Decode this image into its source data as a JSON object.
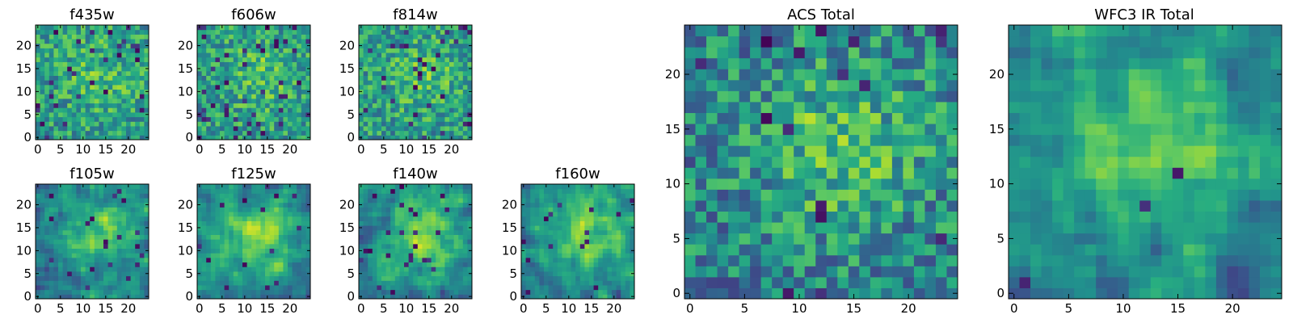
{
  "chart_data": [
    {
      "type": "heatmap",
      "title": "f435w",
      "xticks": [
        "0",
        "5",
        "10",
        "15",
        "20"
      ],
      "yticks": [
        "0",
        "5",
        "10",
        "15",
        "20"
      ],
      "size": 25,
      "seed": 11,
      "pattern": "noise",
      "blur": 0,
      "dark_prob": 0.05
    },
    {
      "type": "heatmap",
      "title": "f606w",
      "xticks": [
        "0",
        "5",
        "10",
        "15",
        "20"
      ],
      "yticks": [
        "0",
        "5",
        "10",
        "15",
        "20"
      ],
      "size": 25,
      "seed": 23,
      "pattern": "noise",
      "blur": 0,
      "dark_prob": 0.06
    },
    {
      "type": "heatmap",
      "title": "f814w",
      "xticks": [
        "0",
        "5",
        "10",
        "15",
        "20"
      ],
      "yticks": [
        "0",
        "5",
        "10",
        "15",
        "20"
      ],
      "size": 25,
      "seed": 37,
      "pattern": "noise",
      "blur": 0,
      "dark_prob": 0.05
    },
    {
      "type": "heatmap",
      "title": "f105w",
      "xticks": [
        "0",
        "5",
        "10",
        "15",
        "20"
      ],
      "yticks": [
        "0",
        "5",
        "10",
        "15",
        "20"
      ],
      "size": 25,
      "seed": 41,
      "pattern": "smooth",
      "blur": 1,
      "dark_prob": 0.03
    },
    {
      "type": "heatmap",
      "title": "f125w",
      "xticks": [
        "0",
        "5",
        "10",
        "15",
        "20"
      ],
      "yticks": [
        "0",
        "5",
        "10",
        "15",
        "20"
      ],
      "size": 25,
      "seed": 53,
      "pattern": "smooth",
      "blur": 1,
      "dark_prob": 0.03
    },
    {
      "type": "heatmap",
      "title": "f140w",
      "xticks": [
        "0",
        "5",
        "10",
        "15",
        "20"
      ],
      "yticks": [
        "0",
        "5",
        "10",
        "15",
        "20"
      ],
      "size": 25,
      "seed": 67,
      "pattern": "smooth",
      "blur": 1,
      "dark_prob": 0.03
    },
    {
      "type": "heatmap",
      "title": "f160w",
      "xticks": [
        "0",
        "5",
        "10",
        "15",
        "20"
      ],
      "yticks": [
        "0",
        "5",
        "10",
        "15",
        "20"
      ],
      "size": 25,
      "seed": 79,
      "pattern": "smooth",
      "blur": 1,
      "dark_prob": 0.03
    },
    {
      "type": "heatmap",
      "title": "ACS Total",
      "xticks": [
        "0",
        "5",
        "10",
        "15",
        "20"
      ],
      "yticks": [
        "0",
        "5",
        "10",
        "15",
        "20"
      ],
      "size": 25,
      "seed": 97,
      "pattern": "medium",
      "blur": 0,
      "dark_prob": 0.03
    },
    {
      "type": "heatmap",
      "title": "WFC3 IR Total",
      "xticks": [
        "0",
        "5",
        "10",
        "15",
        "20"
      ],
      "yticks": [
        "0",
        "5",
        "10",
        "15",
        "20"
      ],
      "size": 25,
      "seed": 131,
      "pattern": "smooth",
      "blur": 1,
      "dark_prob": 0.015
    }
  ]
}
